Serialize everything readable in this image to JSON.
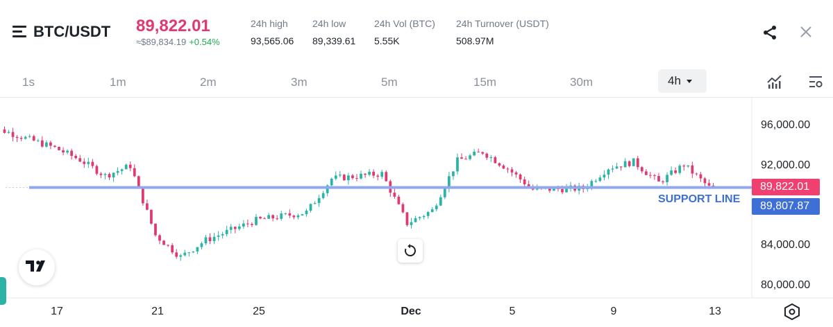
{
  "header": {
    "pair": "BTC/USDT",
    "price": "89,822.01",
    "usd_equiv": "≈$89,834.19",
    "change": "+0.54%",
    "stats": [
      {
        "label": "24h high",
        "value": "93,565.06"
      },
      {
        "label": "24h low",
        "value": "89,339.61"
      },
      {
        "label": "24h Vol (BTC)",
        "value": "5.55K"
      },
      {
        "label": "24h Turnover (USDT)",
        "value": "508.97M"
      }
    ]
  },
  "timeframes": [
    "1s",
    "1m",
    "2m",
    "3m",
    "5m",
    "15m",
    "30m"
  ],
  "active_timeframe": "4h",
  "colors": {
    "up": "#2bb3a8",
    "down": "#e0396f",
    "support": "#8fa8ee",
    "last_price_tag": "#f0406f",
    "support_tag": "#3d6fd6"
  },
  "icons": [
    "menu-icon",
    "share-icon",
    "close-icon",
    "indicator-icon",
    "chart-settings-icon",
    "tradingview-logo-icon",
    "reset-icon",
    "hexagon-settings-icon"
  ],
  "chart": {
    "last_price_tag": "89,822.01",
    "support_price_tag": "89,807.87",
    "support_label": "SUPPORT LINE"
  },
  "chart_data": {
    "type": "candlestick",
    "interval": "4h",
    "ylim": [
      79000,
      98500
    ],
    "y_ticks": [
      "96,000.00",
      "92,000.00",
      "84,000.00",
      "80,000.00"
    ],
    "y_tick_values": [
      96000,
      92000,
      84000,
      80000
    ],
    "x_ticks": [
      {
        "label": "17",
        "day": 17,
        "month": "Nov"
      },
      {
        "label": "21",
        "day": 21,
        "month": "Nov"
      },
      {
        "label": "25",
        "day": 25,
        "month": "Nov"
      },
      {
        "label": "Dec",
        "day": 1,
        "month": "Dec"
      },
      {
        "label": "5",
        "day": 5,
        "month": "Dec"
      },
      {
        "label": "9",
        "day": 9,
        "month": "Dec"
      },
      {
        "label": "13",
        "day": 13,
        "month": "Dec"
      }
    ],
    "x_range": {
      "start": "2025-11-14",
      "end": "2025-12-15"
    },
    "support_level": 89807.87,
    "last_price": 89822.01,
    "key_prices": [
      {
        "date": "2025-11-14",
        "price": 95800
      },
      {
        "date": "2025-11-15",
        "price": 95500
      },
      {
        "date": "2025-11-17",
        "price": 93800
      },
      {
        "date": "2025-11-18",
        "price": 92600
      },
      {
        "date": "2025-11-19",
        "price": 91000
      },
      {
        "date": "2025-11-20",
        "price": 92000
      },
      {
        "date": "2025-11-21",
        "price": 85000
      },
      {
        "date": "2025-11-22",
        "price": 82800
      },
      {
        "date": "2025-11-23",
        "price": 84500
      },
      {
        "date": "2025-11-25",
        "price": 86500
      },
      {
        "date": "2025-11-27",
        "price": 87300
      },
      {
        "date": "2025-11-28",
        "price": 90700
      },
      {
        "date": "2025-11-30",
        "price": 91200
      },
      {
        "date": "2025-12-01",
        "price": 86200
      },
      {
        "date": "2025-12-02",
        "price": 87500
      },
      {
        "date": "2025-12-03",
        "price": 92500
      },
      {
        "date": "2025-12-04",
        "price": 93400
      },
      {
        "date": "2025-12-05",
        "price": 91700
      },
      {
        "date": "2025-12-06",
        "price": 89600
      },
      {
        "date": "2025-12-08",
        "price": 89700
      },
      {
        "date": "2025-12-09",
        "price": 91800
      },
      {
        "date": "2025-12-10",
        "price": 92400
      },
      {
        "date": "2025-12-11",
        "price": 90300
      },
      {
        "date": "2025-12-12",
        "price": 92100
      },
      {
        "date": "2025-12-13",
        "price": 89822
      }
    ]
  }
}
